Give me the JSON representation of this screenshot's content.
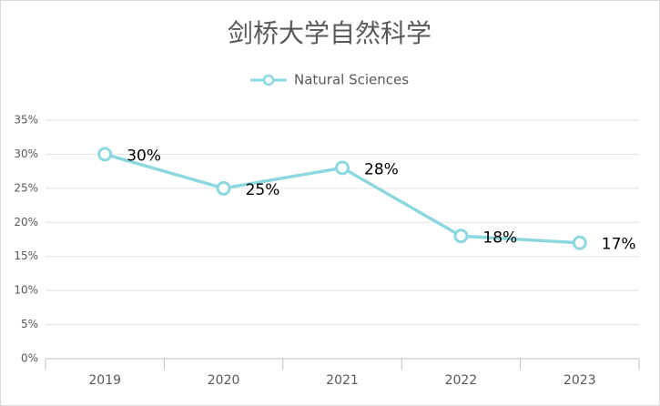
{
  "chart_data": {
    "type": "line",
    "title": "剑桥大学自然科学",
    "categories": [
      "2019",
      "2020",
      "2021",
      "2022",
      "2023"
    ],
    "series": [
      {
        "name": "Natural Sciences",
        "color": "#8dd7df",
        "values": [
          30,
          25,
          28,
          18,
          17
        ],
        "value_labels": [
          "30%",
          "25%",
          "28%",
          "18%",
          "17%"
        ]
      }
    ],
    "ylim": [
      0,
      35
    ],
    "yticks": [
      {
        "value": 0,
        "label": "0%"
      },
      {
        "value": 5,
        "label": "5%"
      },
      {
        "value": 10,
        "label": "10%"
      },
      {
        "value": 15,
        "label": "15%"
      },
      {
        "value": 20,
        "label": "20%"
      },
      {
        "value": 25,
        "label": "25%"
      },
      {
        "value": 30,
        "label": "30%"
      },
      {
        "value": 35,
        "label": "35%"
      }
    ],
    "grid": true,
    "legend": "top"
  }
}
